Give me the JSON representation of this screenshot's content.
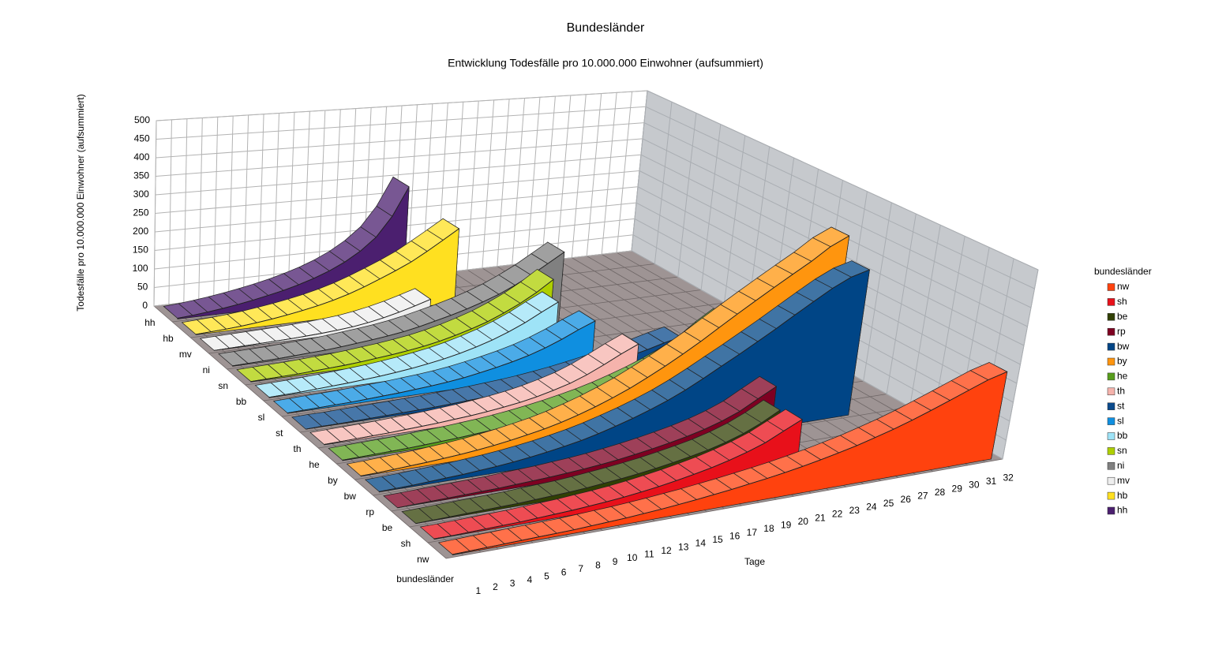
{
  "chart_data": {
    "type": "3d-ribbon",
    "title": "Bundesländer",
    "subtitle": "Entwicklung Todesfälle pro 10.000.000 Einwohner (aufsummiert)",
    "y_axis_label": "Todesfälle pro 10.000.000 Einwohner (aufsummiert)",
    "x_axis_label": "Tage",
    "z_axis_label": "bundesländer",
    "legend_title": "bundesländer",
    "legend": "right",
    "grid": true,
    "ylim": [
      0,
      500
    ],
    "yticks": [
      0,
      50,
      100,
      150,
      200,
      250,
      300,
      350,
      400,
      450,
      500
    ],
    "x": [
      1,
      2,
      3,
      4,
      5,
      6,
      7,
      8,
      9,
      10,
      11,
      12,
      13,
      14,
      15,
      16,
      17,
      18,
      19,
      20,
      21,
      22,
      23,
      24,
      25,
      26,
      27,
      28,
      29,
      30,
      31,
      32
    ],
    "series": [
      {
        "name": "nw",
        "color": "#ff420e",
        "values": [
          1,
          2,
          3,
          4,
          5,
          6,
          7,
          8,
          10,
          12,
          14,
          17,
          20,
          24,
          28,
          33,
          38,
          44,
          50,
          57,
          65,
          74,
          84,
          95,
          108,
          122,
          138,
          156,
          175,
          195,
          215,
          230
        ]
      },
      {
        "name": "sh",
        "color": "#e8101a",
        "values": [
          1,
          1,
          2,
          3,
          4,
          5,
          7,
          9,
          11,
          14,
          17,
          21,
          26,
          32,
          39,
          47,
          56,
          67,
          80,
          96,
          118,
          140,
          null,
          null,
          null,
          null,
          null,
          null,
          null,
          null,
          null,
          null
        ]
      },
      {
        "name": "be",
        "color": "#314004",
        "values": [
          0,
          1,
          2,
          3,
          4,
          5,
          6,
          8,
          10,
          12,
          15,
          19,
          23,
          28,
          34,
          41,
          49,
          58,
          70,
          85,
          105,
          130,
          null,
          null,
          null,
          null,
          null,
          null,
          null,
          null,
          null,
          null
        ]
      },
      {
        "name": "rp",
        "color": "#7e0021",
        "values": [
          0,
          1,
          2,
          3,
          4,
          5,
          6,
          8,
          10,
          12,
          15,
          18,
          22,
          27,
          33,
          40,
          48,
          57,
          68,
          82,
          100,
          125,
          150,
          null,
          null,
          null,
          null,
          null,
          null,
          null,
          null,
          null
        ]
      },
      {
        "name": "bw",
        "color": "#004586",
        "values": [
          1,
          2,
          3,
          5,
          7,
          9,
          12,
          15,
          19,
          24,
          30,
          37,
          45,
          55,
          67,
          80,
          95,
          112,
          132,
          155,
          180,
          205,
          232,
          260,
          290,
          320,
          350,
          375,
          390,
          null,
          null,
          null
        ]
      },
      {
        "name": "by",
        "color": "#ff950e",
        "values": [
          1,
          2,
          4,
          6,
          8,
          11,
          14,
          18,
          23,
          29,
          36,
          44,
          54,
          66,
          80,
          96,
          114,
          135,
          158,
          183,
          210,
          240,
          270,
          300,
          330,
          360,
          390,
          425,
          450,
          null,
          null,
          null
        ]
      },
      {
        "name": "he",
        "color": "#579d1c",
        "values": [
          1,
          2,
          3,
          4,
          5,
          7,
          9,
          11,
          14,
          17,
          21,
          26,
          32,
          39,
          47,
          56,
          67,
          80,
          95,
          112,
          132,
          155,
          190,
          220,
          null,
          null,
          null,
          null,
          null,
          null,
          null,
          null
        ]
      },
      {
        "name": "th",
        "color": "#f5b3ac",
        "values": [
          1,
          2,
          3,
          4,
          5,
          7,
          9,
          11,
          14,
          17,
          21,
          26,
          32,
          40,
          50,
          62,
          78,
          98,
          120,
          140,
          null,
          null,
          null,
          null,
          null,
          null,
          null,
          null,
          null,
          null,
          null,
          null
        ]
      },
      {
        "name": "st",
        "color": "#0a4a8c",
        "values": [
          0,
          1,
          1,
          2,
          3,
          4,
          5,
          6,
          7,
          9,
          11,
          13,
          16,
          19,
          23,
          28,
          34,
          41,
          49,
          58,
          68,
          78,
          90,
          100,
          null,
          null,
          null,
          null,
          null,
          null,
          null,
          null
        ]
      },
      {
        "name": "sl",
        "color": "#0f8fe0",
        "values": [
          1,
          2,
          3,
          4,
          5,
          7,
          9,
          11,
          14,
          17,
          21,
          26,
          33,
          41,
          50,
          61,
          75,
          92,
          112,
          130,
          null,
          null,
          null,
          null,
          null,
          null,
          null,
          null,
          null,
          null,
          null,
          null
        ]
      },
      {
        "name": "bb",
        "color": "#9ee3f7",
        "values": [
          1,
          2,
          3,
          5,
          7,
          9,
          12,
          15,
          19,
          24,
          30,
          37,
          46,
          57,
          70,
          86,
          105,
          128,
          150,
          null,
          null,
          null,
          null,
          null,
          null,
          null,
          null,
          null,
          null,
          null,
          null,
          null
        ]
      },
      {
        "name": "sn",
        "color": "#aecf00",
        "values": [
          1,
          2,
          3,
          4,
          6,
          8,
          10,
          13,
          17,
          21,
          26,
          32,
          40,
          50,
          62,
          76,
          94,
          115,
          140,
          170,
          null,
          null,
          null,
          null,
          null,
          null,
          null,
          null,
          null,
          null,
          null,
          null
        ]
      },
      {
        "name": "ni",
        "color": "#808080",
        "values": [
          1,
          2,
          3,
          4,
          6,
          8,
          10,
          13,
          17,
          21,
          26,
          32,
          40,
          50,
          60,
          72,
          86,
          102,
          122,
          145,
          172,
          200,
          null,
          null,
          null,
          null,
          null,
          null,
          null,
          null,
          null,
          null
        ]
      },
      {
        "name": "mv",
        "color": "#eeeeee",
        "values": [
          0,
          1,
          2,
          3,
          4,
          5,
          7,
          9,
          12,
          16,
          22,
          30,
          40,
          52,
          65,
          null,
          null,
          null,
          null,
          null,
          null,
          null,
          null,
          null,
          null,
          null,
          null,
          null,
          null,
          null,
          null,
          null
        ]
      },
      {
        "name": "hb",
        "color": "#ffe020",
        "values": [
          1,
          3,
          5,
          8,
          12,
          17,
          23,
          30,
          38,
          48,
          60,
          75,
          92,
          110,
          130,
          155,
          182,
          210,
          null,
          null,
          null,
          null,
          null,
          null,
          null,
          null,
          null,
          null,
          null,
          null,
          null,
          null
        ]
      },
      {
        "name": "hh",
        "color": "#4b1f6f",
        "values": [
          2,
          5,
          9,
          14,
          20,
          27,
          35,
          44,
          55,
          68,
          84,
          104,
          130,
          165,
          220,
          300,
          null,
          null,
          null,
          null,
          null,
          null,
          null,
          null,
          null,
          null,
          null,
          null,
          null,
          null,
          null,
          null
        ]
      }
    ]
  }
}
